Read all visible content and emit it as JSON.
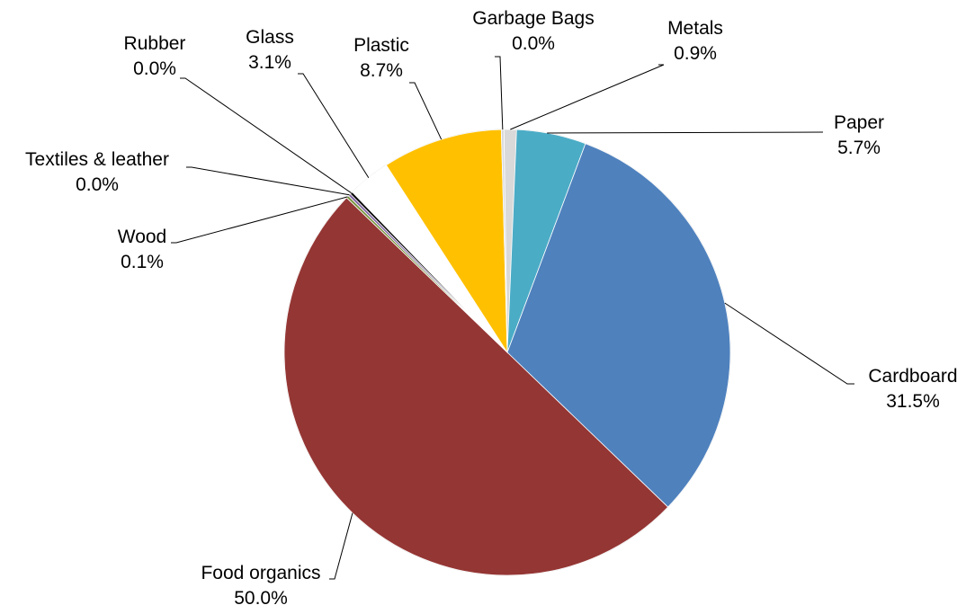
{
  "chart_data": {
    "type": "pie",
    "title": "",
    "start_angle_deg": 0,
    "direction": "clockwise",
    "slices": [
      {
        "label": "Paper",
        "value": 5.7,
        "value_label": "5.7%",
        "color": "#4BACC6"
      },
      {
        "label": "Cardboard",
        "value": 31.5,
        "value_label": "31.5%",
        "color": "#4F81BD"
      },
      {
        "label": "Food organics",
        "value": 50.0,
        "value_label": "50.0%",
        "color": "#943634"
      },
      {
        "label": "Wood",
        "value": 0.1,
        "value_label": "0.1%",
        "color": "#76923C"
      },
      {
        "label": "Textiles & leather",
        "value": 0.0,
        "value_label": "0.0%",
        "color": "#8064A2"
      },
      {
        "label": "Rubber",
        "value": 0.0,
        "value_label": "0.0%",
        "color": "#000000"
      },
      {
        "label": "Glass",
        "value": 3.1,
        "value_label": "3.1%",
        "color": "#FFFFFF"
      },
      {
        "label": "Plastic",
        "value": 8.7,
        "value_label": "8.7%",
        "color": "#FFC000"
      },
      {
        "label": "Garbage Bags",
        "value": 0.0,
        "value_label": "0.0%",
        "color": "#D9D9D9"
      },
      {
        "label": "Metals",
        "value": 0.9,
        "value_label": "0.9%",
        "color": "#D9D9D9"
      }
    ]
  }
}
